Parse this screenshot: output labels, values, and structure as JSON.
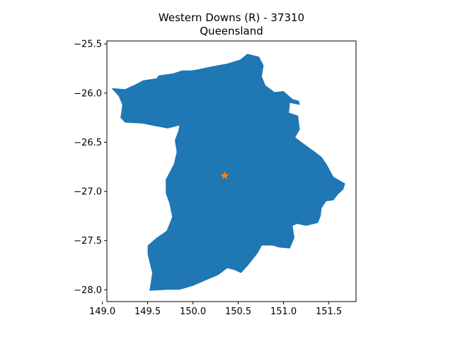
{
  "title": "Western Downs (R) - 37310",
  "subtitle": "Queensland",
  "colors": {
    "region_fill": "#1f77b4",
    "marker": "#ff7f0e",
    "axes": "#000000",
    "background": "#ffffff"
  },
  "chart_data": {
    "type": "map",
    "xlim": [
      149.05,
      151.8
    ],
    "ylim": [
      -28.12,
      -25.47
    ],
    "x_ticks": [
      149.0,
      149.5,
      150.0,
      150.5,
      151.0,
      151.5
    ],
    "x_tick_labels": [
      "149.0",
      "149.5",
      "150.0",
      "150.5",
      "151.0",
      "151.5"
    ],
    "y_ticks": [
      -25.5,
      -26.0,
      -26.5,
      -27.0,
      -27.5,
      -28.0
    ],
    "y_tick_labels": [
      "−25.5",
      "−26.0",
      "−26.5",
      "−27.0",
      "−27.5",
      "−28.0"
    ],
    "marker": {
      "shape": "star",
      "lon": 150.35,
      "lat": -26.84
    },
    "region_outline": [
      [
        149.1,
        -25.95
      ],
      [
        149.25,
        -25.96
      ],
      [
        149.37,
        -25.91
      ],
      [
        149.45,
        -25.87
      ],
      [
        149.6,
        -25.85
      ],
      [
        149.62,
        -25.82
      ],
      [
        149.78,
        -25.8
      ],
      [
        149.88,
        -25.77
      ],
      [
        149.98,
        -25.77
      ],
      [
        150.05,
        -25.76
      ],
      [
        150.2,
        -25.73
      ],
      [
        150.38,
        -25.7
      ],
      [
        150.52,
        -25.66
      ],
      [
        150.6,
        -25.6
      ],
      [
        150.73,
        -25.63
      ],
      [
        150.78,
        -25.72
      ],
      [
        150.76,
        -25.83
      ],
      [
        150.8,
        -25.92
      ],
      [
        150.9,
        -25.99
      ],
      [
        151.0,
        -25.98
      ],
      [
        151.05,
        -26.02
      ],
      [
        151.1,
        -26.06
      ],
      [
        151.17,
        -26.08
      ],
      [
        151.18,
        -26.12
      ],
      [
        151.07,
        -26.1
      ],
      [
        151.06,
        -26.2
      ],
      [
        151.16,
        -26.23
      ],
      [
        151.18,
        -26.37
      ],
      [
        151.13,
        -26.45
      ],
      [
        151.2,
        -26.5
      ],
      [
        151.35,
        -26.6
      ],
      [
        151.42,
        -26.65
      ],
      [
        151.48,
        -26.73
      ],
      [
        151.55,
        -26.85
      ],
      [
        151.68,
        -26.92
      ],
      [
        151.66,
        -26.98
      ],
      [
        151.6,
        -27.03
      ],
      [
        151.55,
        -27.09
      ],
      [
        151.47,
        -27.1
      ],
      [
        151.42,
        -27.17
      ],
      [
        151.41,
        -27.25
      ],
      [
        151.38,
        -27.32
      ],
      [
        151.25,
        -27.35
      ],
      [
        151.15,
        -27.33
      ],
      [
        151.1,
        -27.35
      ],
      [
        151.12,
        -27.47
      ],
      [
        151.07,
        -27.58
      ],
      [
        150.95,
        -27.57
      ],
      [
        150.88,
        -27.55
      ],
      [
        150.76,
        -27.55
      ],
      [
        150.72,
        -27.62
      ],
      [
        150.67,
        -27.68
      ],
      [
        150.6,
        -27.76
      ],
      [
        150.53,
        -27.83
      ],
      [
        150.46,
        -27.8
      ],
      [
        150.38,
        -27.78
      ],
      [
        150.28,
        -27.85
      ],
      [
        150.15,
        -27.9
      ],
      [
        150.0,
        -27.96
      ],
      [
        149.85,
        -28.0
      ],
      [
        149.72,
        -28.0
      ],
      [
        149.52,
        -28.01
      ],
      [
        149.55,
        -27.83
      ],
      [
        149.5,
        -27.64
      ],
      [
        149.5,
        -27.55
      ],
      [
        149.6,
        -27.47
      ],
      [
        149.71,
        -27.4
      ],
      [
        149.77,
        -27.26
      ],
      [
        149.74,
        -27.12
      ],
      [
        149.7,
        -27.02
      ],
      [
        149.7,
        -26.88
      ],
      [
        149.79,
        -26.72
      ],
      [
        149.82,
        -26.6
      ],
      [
        149.8,
        -26.48
      ],
      [
        149.84,
        -26.38
      ],
      [
        149.85,
        -26.33
      ],
      [
        149.72,
        -26.36
      ],
      [
        149.55,
        -26.33
      ],
      [
        149.45,
        -26.31
      ],
      [
        149.25,
        -26.3
      ],
      [
        149.2,
        -26.25
      ],
      [
        149.22,
        -26.12
      ],
      [
        149.18,
        -26.03
      ],
      [
        149.1,
        -25.95
      ]
    ]
  }
}
